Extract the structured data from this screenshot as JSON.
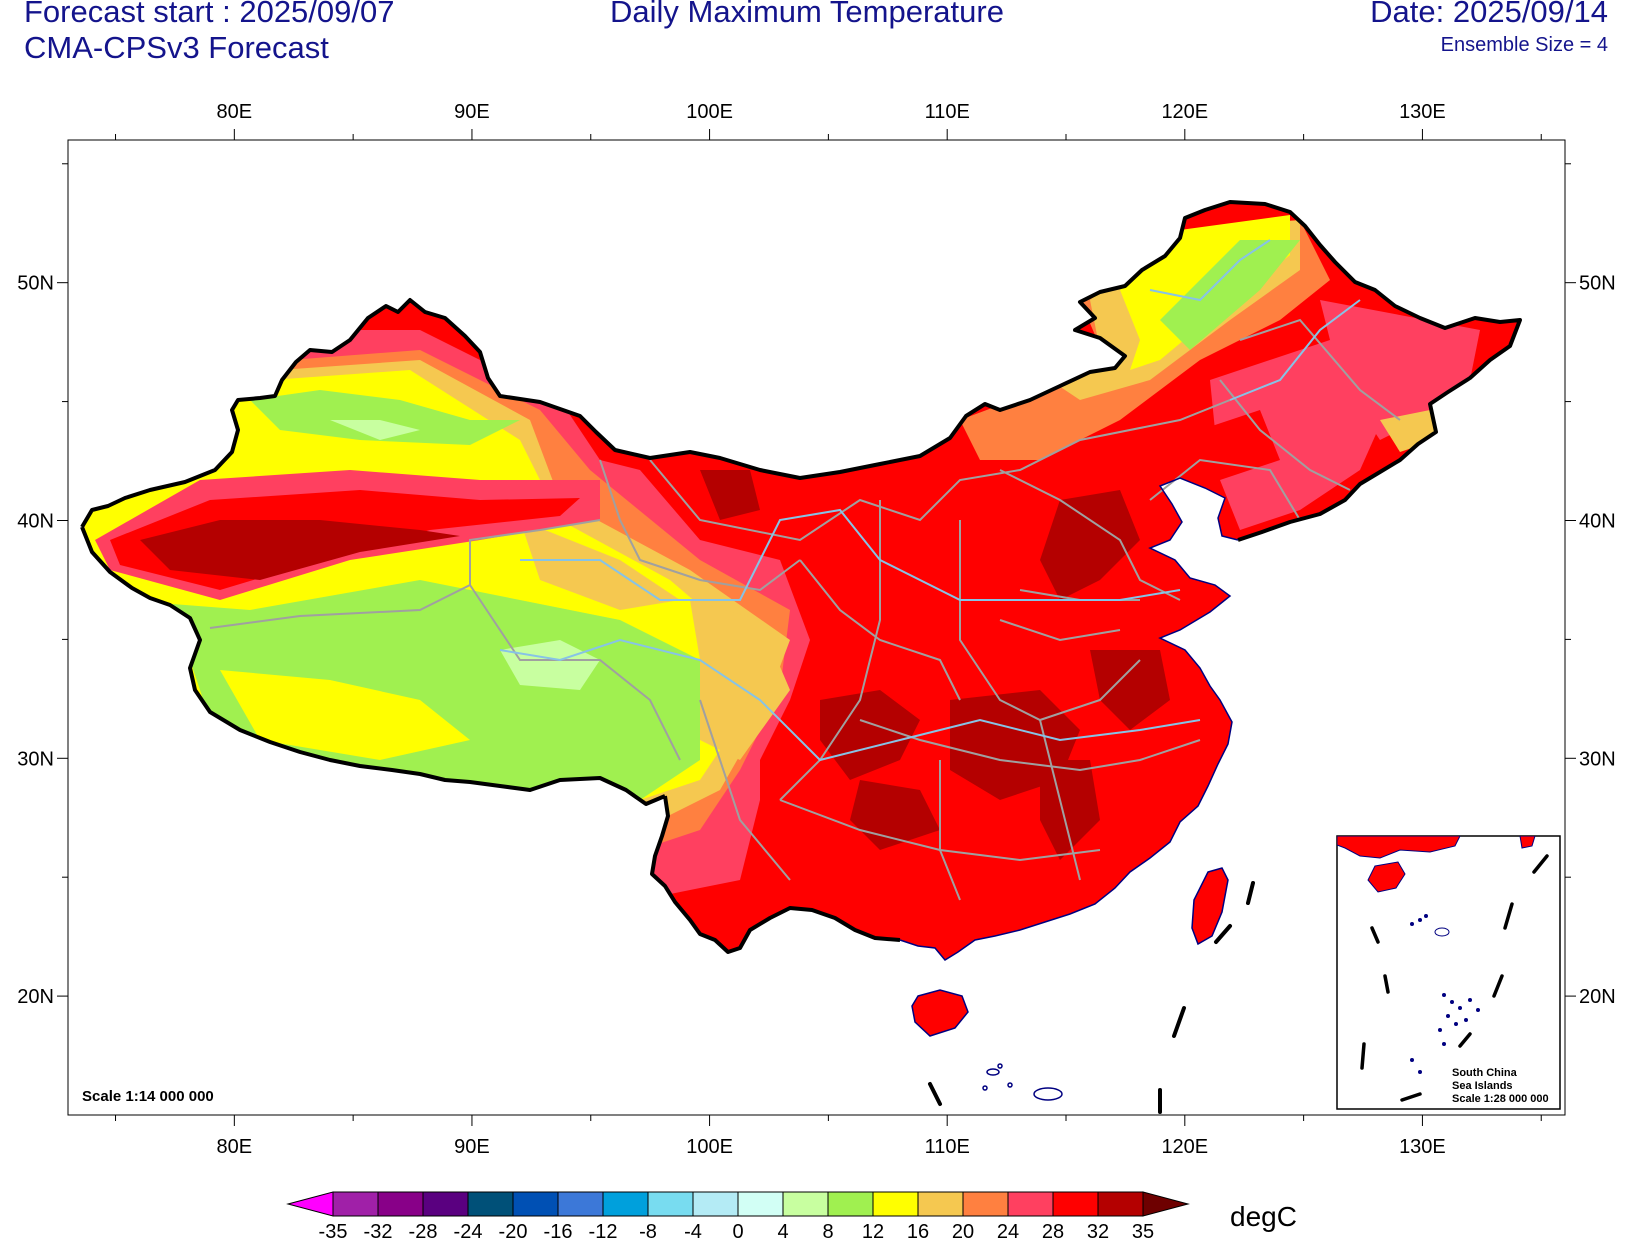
{
  "header": {
    "forecast_start": "Forecast start : 2025/09/07",
    "model": "CMA-CPSv3 Forecast",
    "title": "Daily Maximum Temperature",
    "date": "Date: 2025/09/14",
    "ensemble": "Ensemble Size = 4"
  },
  "map": {
    "scale_main": "Scale 1:14 000 000",
    "inset_labels": [
      "South China",
      "Sea Islands",
      "Scale 1:28 000 000"
    ],
    "lon_ticks": [
      "80E",
      "90E",
      "100E",
      "110E",
      "120E",
      "130E"
    ],
    "lat_ticks": [
      "50N",
      "40N",
      "30N",
      "20N"
    ],
    "lon_values": [
      80,
      90,
      100,
      110,
      120,
      130
    ],
    "lat_values": [
      50,
      40,
      30,
      20
    ],
    "lon_range": [
      73,
      136
    ],
    "lat_range": [
      15,
      56
    ]
  },
  "legend": {
    "unit": "degC",
    "levels": [
      "-35",
      "-32",
      "-28",
      "-24",
      "-20",
      "-16",
      "-12",
      "-8",
      "-4",
      "0",
      "4",
      "8",
      "12",
      "16",
      "20",
      "24",
      "28",
      "32",
      "35"
    ],
    "colors": [
      "#ff00ff",
      "#a020a8",
      "#880088",
      "#5a0080",
      "#005078",
      "#0050b4",
      "#3c78d8",
      "#00a0dc",
      "#78dcf0",
      "#b4ebf5",
      "#d2fff5",
      "#c8ffa0",
      "#a0f050",
      "#ffff00",
      "#f5c850",
      "#ff8040",
      "#ff4060",
      "#ff0000",
      "#b40000",
      "#6e0000"
    ]
  },
  "colors": {
    "text": "#14148c",
    "boundary": "#000000",
    "province": "#a0a0a0",
    "river": "#87c3e6",
    "coast": "#000080"
  }
}
